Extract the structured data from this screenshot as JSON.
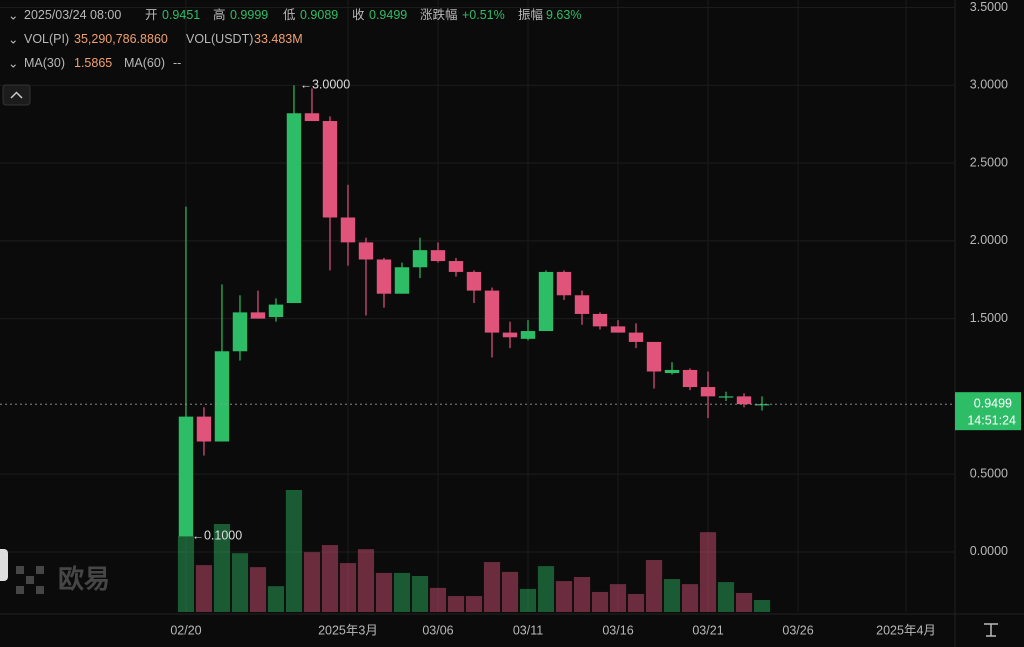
{
  "header": {
    "datetime": "2025/03/24 08:00",
    "open_label": "开",
    "high_label": "高",
    "low_label": "低",
    "close_label": "收",
    "change_label": "涨跌幅",
    "change": "+0.51%",
    "amplitude_label": "振幅",
    "amplitude": "9.63%"
  },
  "indicators": {
    "vol_pi_label": "VOL(PI)",
    "vol_pi": "35,290,786.8860",
    "vol_usdt_label": "VOL(USDT)",
    "vol_usdt": "33.483M",
    "ma30_label": "MA(30)",
    "ma30": "1.5865",
    "ma60_label": "MA(60)",
    "ma60": "--"
  },
  "watermark": "欧易",
  "chart_data": {
    "type": "candlestick",
    "x": [
      0,
      1,
      2,
      3,
      4,
      5,
      6,
      7,
      8,
      9,
      10,
      11,
      12,
      13,
      14,
      15,
      16,
      17,
      18,
      19,
      20,
      21,
      22,
      23,
      24,
      25,
      26,
      27,
      28,
      29,
      30,
      31,
      32
    ],
    "open": [
      0.1,
      0.87,
      0.71,
      1.29,
      1.54,
      1.51,
      1.6,
      2.82,
      2.77,
      2.15,
      1.99,
      1.88,
      1.66,
      1.83,
      1.94,
      1.87,
      1.8,
      1.68,
      1.41,
      1.37,
      1.42,
      1.8,
      1.65,
      1.53,
      1.45,
      1.41,
      1.35,
      1.15,
      1.17,
      1.06,
      0.995,
      1.0,
      0.9451
    ],
    "high": [
      2.22,
      0.93,
      1.72,
      1.65,
      1.68,
      1.63,
      3.0,
      2.98,
      2.8,
      2.36,
      2.02,
      1.89,
      1.86,
      2.02,
      1.99,
      1.89,
      1.81,
      1.7,
      1.48,
      1.49,
      1.81,
      1.81,
      1.68,
      1.54,
      1.49,
      1.47,
      1.35,
      1.22,
      1.18,
      1.16,
      1.03,
      1.02,
      0.9999
    ],
    "low": [
      0.1,
      0.62,
      0.71,
      1.23,
      1.5,
      1.48,
      1.6,
      2.77,
      1.81,
      1.84,
      1.52,
      1.57,
      1.66,
      1.76,
      1.86,
      1.77,
      1.6,
      1.25,
      1.31,
      1.36,
      1.42,
      1.62,
      1.46,
      1.43,
      1.41,
      1.31,
      1.05,
      1.14,
      1.04,
      0.86,
      0.97,
      0.93,
      0.9089
    ],
    "close": [
      0.87,
      0.71,
      1.29,
      1.54,
      1.5,
      1.59,
      2.82,
      2.77,
      2.15,
      1.99,
      1.88,
      1.66,
      1.83,
      1.94,
      1.87,
      1.8,
      1.68,
      1.41,
      1.38,
      1.42,
      1.8,
      1.65,
      1.53,
      1.45,
      1.41,
      1.35,
      1.16,
      1.17,
      1.06,
      1.0,
      1.0,
      0.95,
      0.9499
    ],
    "volume": [
      223,
      138,
      259,
      173,
      132,
      76,
      359,
      176,
      197,
      144,
      185,
      115,
      115,
      106,
      71,
      47,
      47,
      147,
      118,
      68,
      135,
      91,
      103,
      59,
      82,
      53,
      153,
      97,
      82,
      235,
      88,
      56,
      35.29
    ],
    "xlim": [
      -10.33,
      42.72
    ],
    "xticks": [
      {
        "value": 0,
        "label": "02/20"
      },
      {
        "value": 9,
        "label": "2025年3月"
      },
      {
        "value": 14,
        "label": "03/06"
      },
      {
        "value": 19,
        "label": "03/11"
      },
      {
        "value": 24,
        "label": "03/16"
      },
      {
        "value": 29,
        "label": "03/21"
      },
      {
        "value": 34,
        "label": "03/26"
      },
      {
        "value": 40,
        "label": "2025年4月"
      }
    ],
    "ylim": [
      -0.386,
      3.548
    ],
    "yticks": [
      {
        "value": 0,
        "label": "0.0000"
      },
      {
        "value": 0.5,
        "label": "0.5000"
      },
      {
        "value": 1.5,
        "label": "1.5000"
      },
      {
        "value": 2,
        "label": "2.0000"
      },
      {
        "value": 2.5,
        "label": "2.5000"
      },
      {
        "value": 3,
        "label": "3.0000"
      },
      {
        "value": 3.5,
        "label": "3.5000"
      }
    ],
    "annotations": [
      "3.0000",
      "0.1000"
    ],
    "last_price_time": "14:51:24",
    "up_color": "#2dbd67",
    "down_color": "#e0547c",
    "grid": true
  }
}
